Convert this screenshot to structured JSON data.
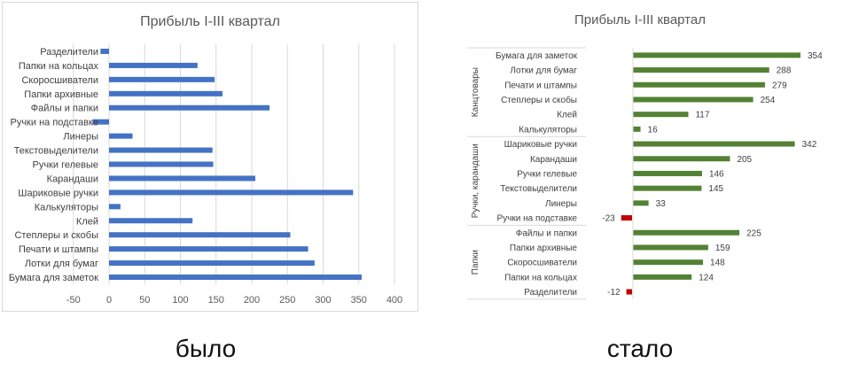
{
  "chart_data": [
    {
      "type": "bar",
      "orientation": "horizontal",
      "title": "Прибыль I-III квартал",
      "categories": [
        "Разделители",
        "Папки на кольцах",
        "Скоросшиватели",
        "Папки архивные",
        "Файлы и папки",
        "Ручки на подставке",
        "Линеры",
        "Текстовыделители",
        "Ручки гелевые",
        "Карандаши",
        "Шариковые ручки",
        "Калькуляторы",
        "Клей",
        "Степлеры и скобы",
        "Печати и штампы",
        "Лотки для бумаг",
        "Бумага для заметок"
      ],
      "values": [
        -12,
        124,
        148,
        159,
        225,
        -23,
        33,
        145,
        146,
        205,
        342,
        16,
        117,
        254,
        279,
        288,
        354
      ],
      "xlim": [
        -50,
        400
      ],
      "xticks": [
        -50,
        0,
        50,
        100,
        150,
        200,
        250,
        300,
        350,
        400
      ],
      "grid": true,
      "bar_color": "#4472c4",
      "caption": "было"
    },
    {
      "type": "bar",
      "orientation": "horizontal",
      "title": "Прибыль I-III квартал",
      "groups": [
        {
          "name": "Канцтовары",
          "categories": [
            "Бумага для заметок",
            "Лотки для бумаг",
            "Печати и штампы",
            "Степлеры и скобы",
            "Клей",
            "Калькуляторы"
          ],
          "values": [
            354,
            288,
            279,
            254,
            117,
            16
          ]
        },
        {
          "name": "Ручки, карандаши",
          "categories": [
            "Шариковые ручки",
            "Карандаши",
            "Ручки гелевые",
            "Текстовыделители",
            "Линеры",
            "Ручки на подставке"
          ],
          "values": [
            342,
            205,
            146,
            145,
            33,
            -23
          ]
        },
        {
          "name": "Папки",
          "categories": [
            "Файлы и папки",
            "Папки архивные",
            "Скоросшиватели",
            "Папки на кольцах",
            "Разделители"
          ],
          "values": [
            225,
            159,
            148,
            124,
            -12
          ]
        }
      ],
      "data_labels": true,
      "grid": false,
      "positive_color": "#548235",
      "negative_color": "#c00000",
      "caption": "стало"
    }
  ]
}
